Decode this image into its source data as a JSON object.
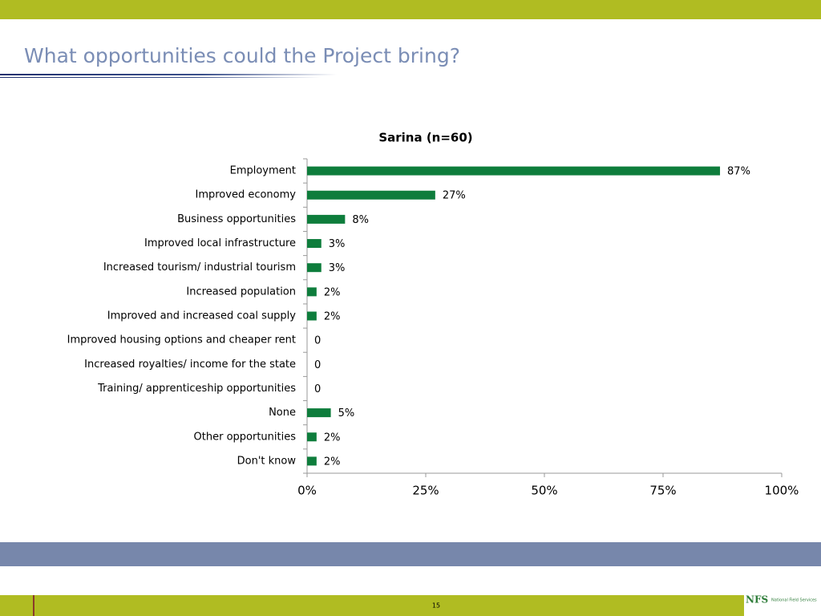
{
  "slide": {
    "title": "What opportunities could the Project bring?",
    "page_number": "15",
    "logo": "NFS",
    "logo_subtitle": "National Field Services"
  },
  "chart_data": {
    "type": "hbar",
    "title": "Sarina (n=60)",
    "categories": [
      "Employment",
      "Improved economy",
      "Business opportunities",
      "Improved local infrastructure",
      "Increased tourism/ industrial tourism",
      "Increased population",
      "Improved and increased coal supply",
      "Improved housing options and cheaper rent",
      "Increased royalties/ income for the state",
      "Training/ apprenticeship opportunities",
      "None",
      "Other opportunities",
      "Don't know"
    ],
    "values": [
      87,
      27,
      8,
      3,
      3,
      2,
      2,
      0,
      0,
      0,
      5,
      2,
      2
    ],
    "value_labels": [
      "87%",
      "27%",
      "8%",
      "3%",
      "3%",
      "2%",
      "2%",
      "0",
      "0",
      "0",
      "5%",
      "2%",
      "2%"
    ],
    "color": "#0e7d3c",
    "xlim": [
      0,
      100
    ],
    "xticks": [
      {
        "value": 0,
        "label": "0%"
      },
      {
        "value": 25,
        "label": "25%"
      },
      {
        "value": 50,
        "label": "50%"
      },
      {
        "value": 75,
        "label": "75%"
      },
      {
        "value": 100,
        "label": "100%"
      }
    ]
  }
}
